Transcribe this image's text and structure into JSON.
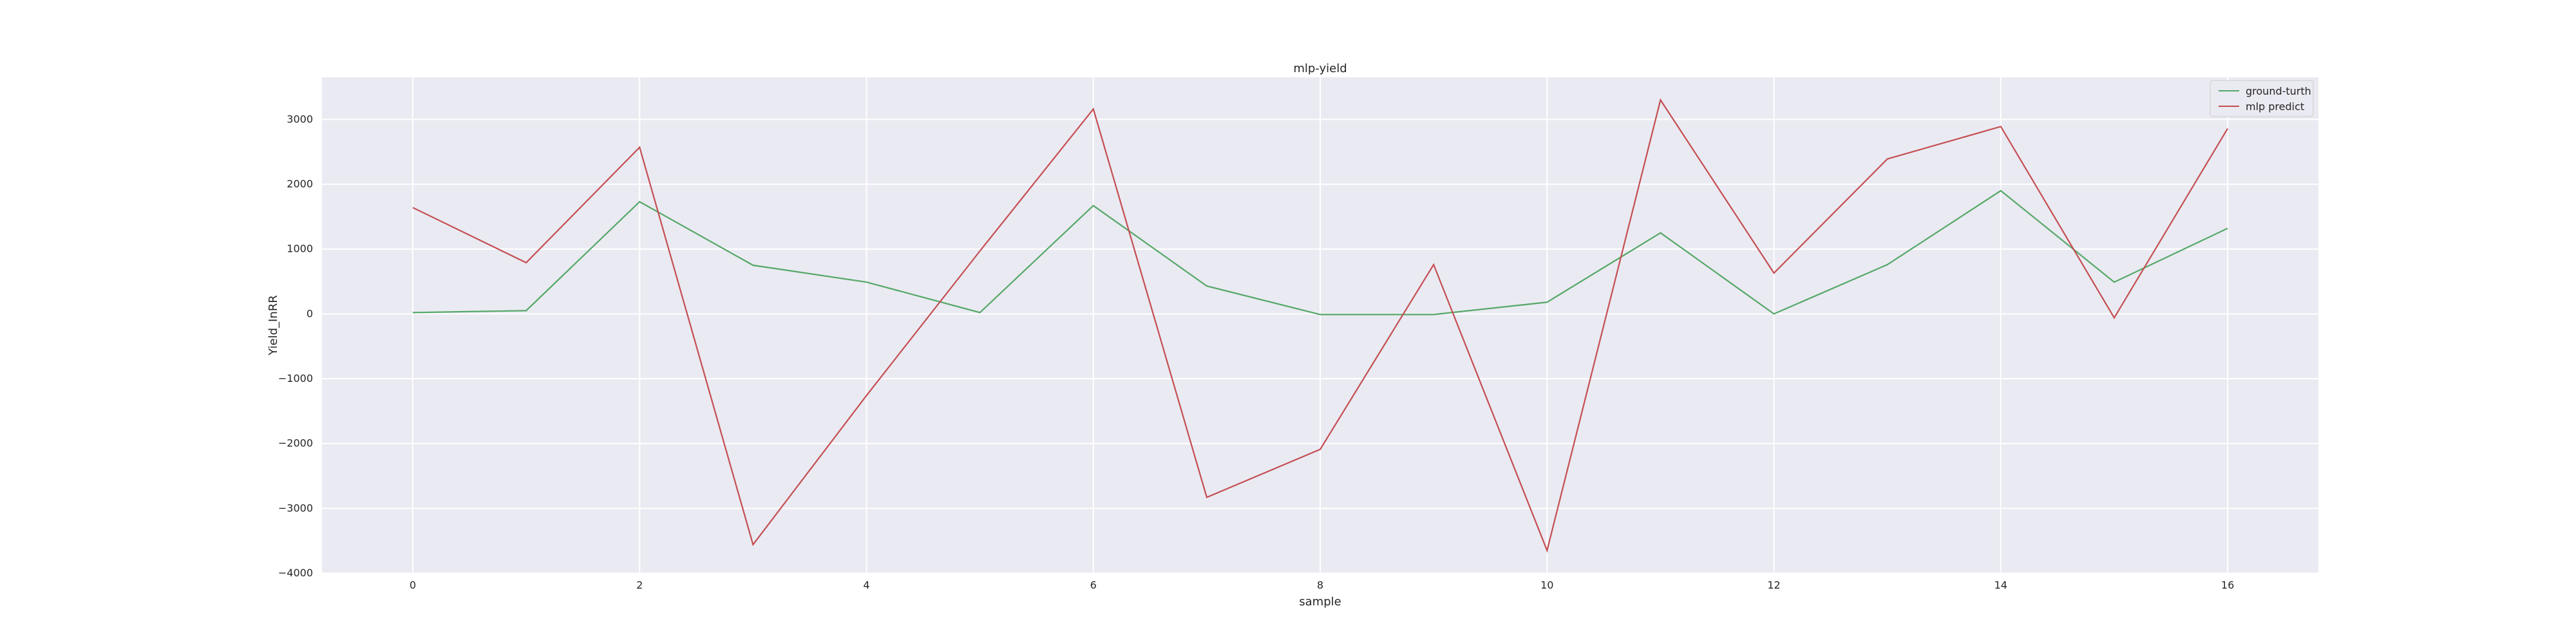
{
  "chart_data": {
    "type": "line",
    "title": "mlp-yield",
    "xlabel": "sample",
    "ylabel": "Yield_InRR",
    "x": [
      0,
      1,
      2,
      3,
      4,
      5,
      6,
      7,
      8,
      9,
      10,
      11,
      12,
      13,
      14,
      15,
      16
    ],
    "xlim": [
      -0.8,
      16.8
    ],
    "ylim": [
      -4000,
      3650
    ],
    "xticks": [
      "0",
      "2",
      "4",
      "6",
      "8",
      "10",
      "12",
      "14",
      "16"
    ],
    "yticks": [
      "−4000",
      "−3000",
      "−2000",
      "−1000",
      "0",
      "1000",
      "2000",
      "3000"
    ],
    "grid": true,
    "legend_position": "top-right",
    "series": [
      {
        "name": "ground-turth",
        "color": "#55a868",
        "values": [
          20,
          50,
          1730,
          750,
          490,
          20,
          1670,
          430,
          -10,
          -10,
          180,
          1250,
          0,
          760,
          1900,
          490,
          1320
        ]
      },
      {
        "name": "mlp predict",
        "color": "#c44e52",
        "values": [
          1640,
          790,
          2570,
          -3560,
          -1260,
          970,
          3160,
          -2830,
          -2090,
          760,
          -3650,
          3300,
          630,
          2390,
          2890,
          -60,
          2860
        ]
      }
    ]
  }
}
